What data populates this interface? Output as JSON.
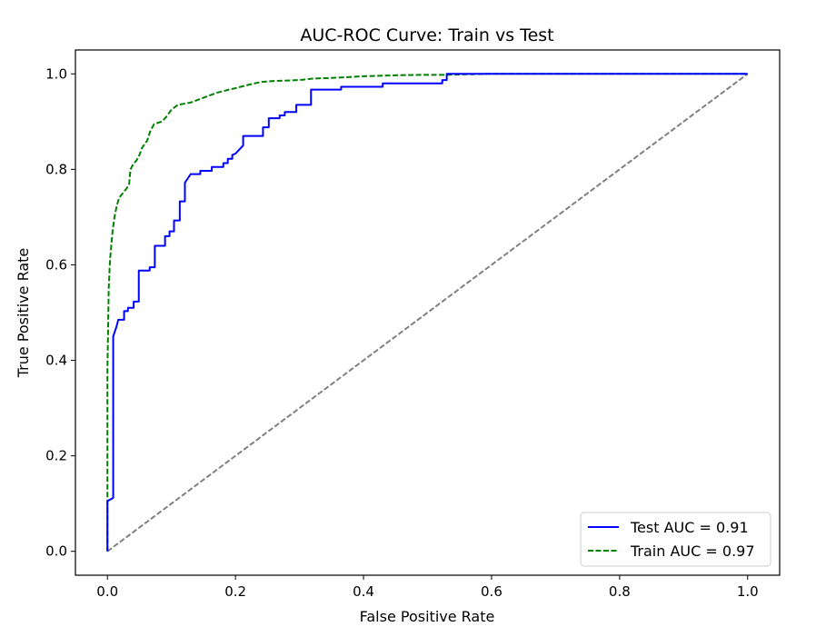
{
  "chart_data": {
    "type": "line",
    "title": "AUC-ROC Curve: Train vs Test",
    "xlabel": "False Positive Rate",
    "ylabel": "True Positive Rate",
    "xlim": [
      -0.05,
      1.05
    ],
    "ylim": [
      -0.05,
      1.05
    ],
    "xticks": [
      0.0,
      0.2,
      0.4,
      0.6,
      0.8,
      1.0
    ],
    "xtick_labels": [
      "0.0",
      "0.2",
      "0.4",
      "0.6",
      "0.8",
      "1.0"
    ],
    "yticks": [
      0.0,
      0.2,
      0.4,
      0.6,
      0.8,
      1.0
    ],
    "ytick_labels": [
      "0.0",
      "0.2",
      "0.4",
      "0.6",
      "0.8",
      "1.0"
    ],
    "grid": false,
    "legend_position": "lower-right",
    "series": [
      {
        "name": "Test AUC = 0.91",
        "color": "#0000ff",
        "style": "solid",
        "points": [
          [
            0.0,
            0.0
          ],
          [
            0.0,
            0.105
          ],
          [
            0.009,
            0.112
          ],
          [
            0.009,
            0.45
          ],
          [
            0.014,
            0.47
          ],
          [
            0.017,
            0.485
          ],
          [
            0.026,
            0.485
          ],
          [
            0.026,
            0.503
          ],
          [
            0.032,
            0.503
          ],
          [
            0.032,
            0.51
          ],
          [
            0.041,
            0.51
          ],
          [
            0.041,
            0.523
          ],
          [
            0.049,
            0.523
          ],
          [
            0.049,
            0.588
          ],
          [
            0.066,
            0.588
          ],
          [
            0.066,
            0.595
          ],
          [
            0.074,
            0.595
          ],
          [
            0.074,
            0.64
          ],
          [
            0.09,
            0.64
          ],
          [
            0.09,
            0.66
          ],
          [
            0.097,
            0.66
          ],
          [
            0.097,
            0.67
          ],
          [
            0.104,
            0.67
          ],
          [
            0.104,
            0.693
          ],
          [
            0.113,
            0.693
          ],
          [
            0.113,
            0.733
          ],
          [
            0.121,
            0.733
          ],
          [
            0.121,
            0.772
          ],
          [
            0.125,
            0.78
          ],
          [
            0.13,
            0.79
          ],
          [
            0.145,
            0.79
          ],
          [
            0.145,
            0.797
          ],
          [
            0.163,
            0.797
          ],
          [
            0.163,
            0.805
          ],
          [
            0.181,
            0.805
          ],
          [
            0.181,
            0.813
          ],
          [
            0.188,
            0.813
          ],
          [
            0.188,
            0.822
          ],
          [
            0.195,
            0.822
          ],
          [
            0.195,
            0.83
          ],
          [
            0.2,
            0.833
          ],
          [
            0.205,
            0.84
          ],
          [
            0.212,
            0.85
          ],
          [
            0.212,
            0.87
          ],
          [
            0.243,
            0.87
          ],
          [
            0.243,
            0.888
          ],
          [
            0.252,
            0.888
          ],
          [
            0.252,
            0.907
          ],
          [
            0.269,
            0.907
          ],
          [
            0.269,
            0.913
          ],
          [
            0.277,
            0.913
          ],
          [
            0.277,
            0.92
          ],
          [
            0.295,
            0.92
          ],
          [
            0.295,
            0.935
          ],
          [
            0.318,
            0.935
          ],
          [
            0.318,
            0.967
          ],
          [
            0.365,
            0.967
          ],
          [
            0.365,
            0.973
          ],
          [
            0.43,
            0.973
          ],
          [
            0.43,
            0.98
          ],
          [
            0.523,
            0.98
          ],
          [
            0.523,
            0.987
          ],
          [
            0.53,
            0.987
          ],
          [
            0.53,
            1.0
          ],
          [
            1.0,
            1.0
          ]
        ]
      },
      {
        "name": "Train AUC = 0.97",
        "color": "#008000",
        "style": "dashed",
        "points": [
          [
            0.0,
            0.0
          ],
          [
            0.0,
            0.38
          ],
          [
            0.001,
            0.46
          ],
          [
            0.002,
            0.55
          ],
          [
            0.004,
            0.61
          ],
          [
            0.006,
            0.64
          ],
          [
            0.008,
            0.67
          ],
          [
            0.011,
            0.7
          ],
          [
            0.014,
            0.72
          ],
          [
            0.018,
            0.74
          ],
          [
            0.024,
            0.75
          ],
          [
            0.03,
            0.76
          ],
          [
            0.034,
            0.77
          ],
          [
            0.036,
            0.8
          ],
          [
            0.04,
            0.81
          ],
          [
            0.046,
            0.82
          ],
          [
            0.05,
            0.83
          ],
          [
            0.054,
            0.845
          ],
          [
            0.062,
            0.86
          ],
          [
            0.067,
            0.88
          ],
          [
            0.073,
            0.895
          ],
          [
            0.085,
            0.9
          ],
          [
            0.092,
            0.91
          ],
          [
            0.1,
            0.925
          ],
          [
            0.11,
            0.935
          ],
          [
            0.13,
            0.94
          ],
          [
            0.15,
            0.95
          ],
          [
            0.17,
            0.96
          ],
          [
            0.19,
            0.967
          ],
          [
            0.2,
            0.97
          ],
          [
            0.22,
            0.977
          ],
          [
            0.24,
            0.983
          ],
          [
            0.26,
            0.985
          ],
          [
            0.3,
            0.987
          ],
          [
            0.32,
            0.99
          ],
          [
            0.36,
            0.992
          ],
          [
            0.4,
            0.995
          ],
          [
            0.45,
            0.997
          ],
          [
            0.5,
            0.998
          ],
          [
            0.53,
            0.998
          ],
          [
            0.56,
            0.999
          ],
          [
            0.6,
            1.0
          ],
          [
            1.0,
            1.0
          ]
        ]
      },
      {
        "color": "#808080",
        "style": "dashed",
        "points": [
          [
            0.0,
            0.0
          ],
          [
            1.0,
            1.0
          ]
        ]
      }
    ]
  }
}
